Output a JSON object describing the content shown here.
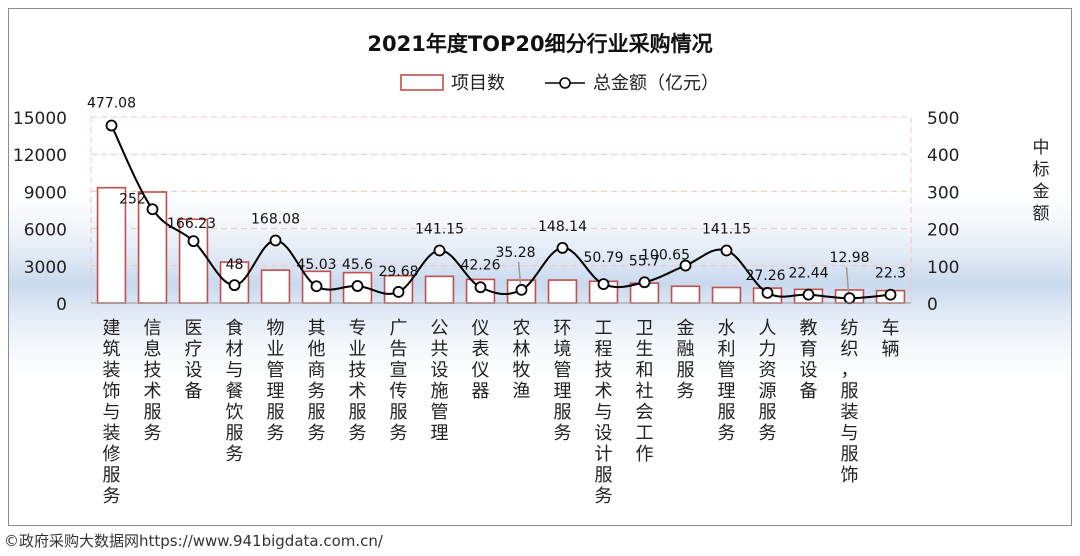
{
  "chart_data": {
    "type": "bar+line",
    "title": "2021年度TOP20细分行业采购情况",
    "categories": [
      "建筑装饰与装修服务",
      "信息技术服务",
      "医疗设备",
      "食材与餐饮服务",
      "物业管理服务",
      "其他商务服务",
      "专业技术服务",
      "广告宣传服务",
      "公共设施管理",
      "仪表仪器",
      "农林牧渔",
      "环境管理服务",
      "工程技术与设计服务",
      "卫生和社会工作",
      "金融服务",
      "水利管理服务",
      "人力资源服务",
      "教育设备",
      "纺织，服装与服饰",
      "车辆"
    ],
    "series": [
      {
        "name": "项目数",
        "type": "bar",
        "axis": "left",
        "values": [
          9300,
          8950,
          6750,
          3300,
          2650,
          2550,
          2450,
          2200,
          2150,
          1900,
          1850,
          1850,
          1750,
          1600,
          1350,
          1250,
          1200,
          1100,
          1050,
          1000
        ]
      },
      {
        "name": "总金额（亿元）",
        "type": "line",
        "axis": "right",
        "values": [
          477.08,
          252,
          166.23,
          48,
          168.08,
          45.03,
          45.6,
          29.68,
          141.15,
          42.26,
          35.28,
          148.14,
          50.79,
          55.7,
          100.65,
          141.15,
          27.26,
          22.44,
          12.98,
          22.3
        ],
        "labels": [
          "477.08",
          "252",
          "166.23",
          "48",
          "168.08",
          "45.03",
          "45.6",
          "29.68",
          "141.15",
          "42.26",
          "35.28",
          "148.14",
          "50.79",
          "55.7",
          "100.65",
          "141.15",
          "27.26",
          "22.44",
          "12.98",
          "22.3"
        ]
      }
    ],
    "left_axis": {
      "min": 0,
      "max": 15000,
      "ticks": [
        "0",
        "3000",
        "6000",
        "9000",
        "12000",
        "15000"
      ]
    },
    "right_axis": {
      "min": 0,
      "max": 500,
      "ticks": [
        "0",
        "100",
        "200",
        "300",
        "400",
        "500"
      ],
      "label": "中标金额"
    },
    "legend": {
      "position": "top-center"
    },
    "colors": {
      "bar_edge": "#c0504d",
      "bar_fill": "#ffffff",
      "line": "#000000",
      "grid": "#f2c4c4",
      "background_glow": "#c9d9ee"
    }
  },
  "footer": {
    "credit": "©政府采购大数据网https://www.941bigdata.com.cn/"
  }
}
